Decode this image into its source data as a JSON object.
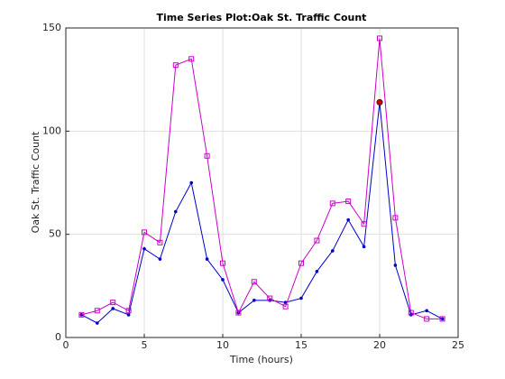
{
  "chart_data": {
    "type": "line",
    "title": "Time Series Plot:Oak St. Traffic Count",
    "x_label": "Time (hours)",
    "y_label": "Oak St. Traffic Count",
    "x": [
      1,
      2,
      3,
      4,
      5,
      6,
      7,
      8,
      9,
      10,
      11,
      12,
      13,
      14,
      15,
      16,
      17,
      18,
      19,
      20,
      21,
      22,
      23,
      24
    ],
    "series": [
      {
        "color": "#0000cc",
        "marker": "dot",
        "values": [
          11,
          7,
          14,
          11,
          43,
          38,
          61,
          75,
          38,
          28,
          12,
          18,
          18,
          17,
          19,
          32,
          42,
          57,
          44,
          114,
          35,
          11,
          13,
          9
        ]
      },
      {
        "color": "#cc00cc",
        "marker": "square",
        "values": [
          11,
          13,
          17,
          13,
          51,
          46,
          132,
          135,
          88,
          36,
          12,
          27,
          19,
          15,
          36,
          47,
          65,
          66,
          55,
          145,
          58,
          12,
          9,
          9
        ]
      }
    ],
    "highlight_point": {
      "x": 20,
      "y": 114,
      "color": "#cc0000"
    },
    "xlim": [
      0,
      25
    ],
    "xticks": [
      0,
      5,
      10,
      15,
      20,
      25
    ],
    "ylim": [
      0,
      150
    ],
    "yticks": [
      0,
      50,
      100,
      150
    ],
    "grid": true
  }
}
